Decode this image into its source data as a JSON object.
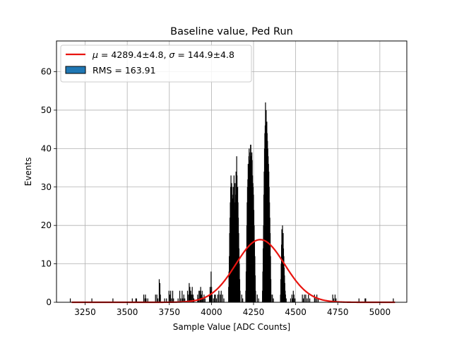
{
  "chart_data": {
    "type": "bar",
    "title": "Baseline value, Ped Run",
    "xlabel": "Sample Value [ADC Counts]",
    "ylabel": "Events",
    "xlim": [
      3080,
      5160
    ],
    "ylim": [
      0,
      68
    ],
    "xticks": [
      3250,
      3500,
      3750,
      4000,
      4250,
      4500,
      4750,
      5000
    ],
    "yticks": [
      0,
      10,
      20,
      30,
      40,
      50,
      60
    ],
    "grid": true,
    "legend_position": "top-left",
    "series": [
      {
        "name_mu_symbol": "μ",
        "name_mu_value": " = 4289.4±4.8, ",
        "name_sigma_symbol": "σ",
        "name_sigma_value": " = 144.9±4.8",
        "kind": "gaussian-fit",
        "mu": 4289.4,
        "sigma": 144.9,
        "amplitude": 16.3,
        "color": "#e8140f"
      },
      {
        "name": "RMS = 163.91",
        "kind": "histogram",
        "color": "#000000",
        "legend_color": "#1f77b4",
        "bins": [
          [
            3162,
            1
          ],
          [
            3290,
            1
          ],
          [
            3415,
            1
          ],
          [
            3530,
            1
          ],
          [
            3551,
            1
          ],
          [
            3555,
            1
          ],
          [
            3598,
            2
          ],
          [
            3605,
            1
          ],
          [
            3608,
            2
          ],
          [
            3612,
            1
          ],
          [
            3622,
            1
          ],
          [
            3668,
            2
          ],
          [
            3676,
            2
          ],
          [
            3682,
            1
          ],
          [
            3690,
            6
          ],
          [
            3694,
            5
          ],
          [
            3697,
            2
          ],
          [
            3722,
            1
          ],
          [
            3733,
            1
          ],
          [
            3748,
            3
          ],
          [
            3752,
            2
          ],
          [
            3758,
            3
          ],
          [
            3763,
            1
          ],
          [
            3770,
            3
          ],
          [
            3775,
            1
          ],
          [
            3802,
            1
          ],
          [
            3812,
            3
          ],
          [
            3818,
            1
          ],
          [
            3826,
            3
          ],
          [
            3830,
            1
          ],
          [
            3836,
            2
          ],
          [
            3842,
            1
          ],
          [
            3858,
            3
          ],
          [
            3864,
            2
          ],
          [
            3868,
            5
          ],
          [
            3872,
            4
          ],
          [
            3877,
            3
          ],
          [
            3881,
            2
          ],
          [
            3886,
            4
          ],
          [
            3891,
            2
          ],
          [
            3896,
            1
          ],
          [
            3918,
            2
          ],
          [
            3922,
            1
          ],
          [
            3926,
            3
          ],
          [
            3932,
            3
          ],
          [
            3936,
            4
          ],
          [
            3940,
            2
          ],
          [
            3945,
            3
          ],
          [
            3950,
            1
          ],
          [
            3956,
            2
          ],
          [
            3962,
            1
          ],
          [
            3988,
            2
          ],
          [
            3992,
            4
          ],
          [
            3995,
            3
          ],
          [
            3998,
            8
          ],
          [
            4001,
            4
          ],
          [
            4004,
            2
          ],
          [
            4012,
            1
          ],
          [
            4018,
            2
          ],
          [
            4024,
            2
          ],
          [
            4030,
            1
          ],
          [
            4038,
            2
          ],
          [
            4044,
            3
          ],
          [
            4052,
            2
          ],
          [
            4058,
            3
          ],
          [
            4066,
            2
          ],
          [
            4074,
            1
          ],
          [
            4102,
            4
          ],
          [
            4104,
            8
          ],
          [
            4106,
            12
          ],
          [
            4108,
            18
          ],
          [
            4110,
            22
          ],
          [
            4112,
            26
          ],
          [
            4114,
            30
          ],
          [
            4116,
            33
          ],
          [
            4118,
            29
          ],
          [
            4120,
            31
          ],
          [
            4122,
            30
          ],
          [
            4124,
            28
          ],
          [
            4126,
            25
          ],
          [
            4128,
            27
          ],
          [
            4130,
            30
          ],
          [
            4132,
            29
          ],
          [
            4134,
            33
          ],
          [
            4136,
            26
          ],
          [
            4138,
            24
          ],
          [
            4140,
            31
          ],
          [
            4142,
            28
          ],
          [
            4144,
            26
          ],
          [
            4146,
            34
          ],
          [
            4148,
            30
          ],
          [
            4150,
            38
          ],
          [
            4152,
            33
          ],
          [
            4154,
            28
          ],
          [
            4156,
            30
          ],
          [
            4158,
            26
          ],
          [
            4160,
            22
          ],
          [
            4162,
            18
          ],
          [
            4164,
            14
          ],
          [
            4166,
            10
          ],
          [
            4168,
            6
          ],
          [
            4170,
            3
          ],
          [
            4180,
            2
          ],
          [
            4186,
            1
          ],
          [
            4204,
            3
          ],
          [
            4206,
            8
          ],
          [
            4208,
            14
          ],
          [
            4210,
            20
          ],
          [
            4212,
            26
          ],
          [
            4214,
            30
          ],
          [
            4216,
            32
          ],
          [
            4218,
            36
          ],
          [
            4220,
            34
          ],
          [
            4222,
            38
          ],
          [
            4224,
            40
          ],
          [
            4226,
            37
          ],
          [
            4228,
            36
          ],
          [
            4230,
            39
          ],
          [
            4232,
            41
          ],
          [
            4234,
            41
          ],
          [
            4236,
            38
          ],
          [
            4238,
            36
          ],
          [
            4240,
            39
          ],
          [
            4242,
            37
          ],
          [
            4244,
            33
          ],
          [
            4246,
            31
          ],
          [
            4248,
            30
          ],
          [
            4250,
            28
          ],
          [
            4252,
            24
          ],
          [
            4254,
            20
          ],
          [
            4256,
            16
          ],
          [
            4258,
            12
          ],
          [
            4260,
            7
          ],
          [
            4262,
            3
          ],
          [
            4272,
            2
          ],
          [
            4280,
            1
          ],
          [
            4303,
            3
          ],
          [
            4305,
            8
          ],
          [
            4307,
            14
          ],
          [
            4309,
            20
          ],
          [
            4311,
            28
          ],
          [
            4313,
            34
          ],
          [
            4315,
            40
          ],
          [
            4317,
            44
          ],
          [
            4319,
            46
          ],
          [
            4321,
            52
          ],
          [
            4323,
            48
          ],
          [
            4325,
            50
          ],
          [
            4327,
            45
          ],
          [
            4329,
            47
          ],
          [
            4331,
            44
          ],
          [
            4333,
            42
          ],
          [
            4335,
            40
          ],
          [
            4337,
            38
          ],
          [
            4339,
            36
          ],
          [
            4341,
            34
          ],
          [
            4343,
            30
          ],
          [
            4345,
            26
          ],
          [
            4347,
            22
          ],
          [
            4349,
            18
          ],
          [
            4351,
            12
          ],
          [
            4353,
            6
          ],
          [
            4355,
            2
          ],
          [
            4362,
            2
          ],
          [
            4368,
            1
          ],
          [
            4410,
            2
          ],
          [
            4412,
            6
          ],
          [
            4414,
            10
          ],
          [
            4416,
            15
          ],
          [
            4418,
            19
          ],
          [
            4420,
            17
          ],
          [
            4422,
            20
          ],
          [
            4424,
            16
          ],
          [
            4426,
            18
          ],
          [
            4428,
            14
          ],
          [
            4430,
            12
          ],
          [
            4432,
            9
          ],
          [
            4434,
            7
          ],
          [
            4436,
            5
          ],
          [
            4438,
            3
          ],
          [
            4440,
            2
          ],
          [
            4444,
            1
          ],
          [
            4470,
            1
          ],
          [
            4478,
            2
          ],
          [
            4482,
            1
          ],
          [
            4486,
            3
          ],
          [
            4490,
            2
          ],
          [
            4496,
            1
          ],
          [
            4540,
            2
          ],
          [
            4546,
            1
          ],
          [
            4552,
            2
          ],
          [
            4560,
            2
          ],
          [
            4568,
            1
          ],
          [
            4576,
            2
          ],
          [
            4584,
            1
          ],
          [
            4612,
            2
          ],
          [
            4618,
            1
          ],
          [
            4626,
            2
          ],
          [
            4634,
            1
          ],
          [
            4720,
            2
          ],
          [
            4726,
            1
          ],
          [
            4734,
            2
          ],
          [
            4740,
            1
          ],
          [
            4876,
            1
          ],
          [
            4912,
            1
          ],
          [
            4916,
            1
          ],
          [
            5080,
            1
          ]
        ]
      }
    ]
  }
}
